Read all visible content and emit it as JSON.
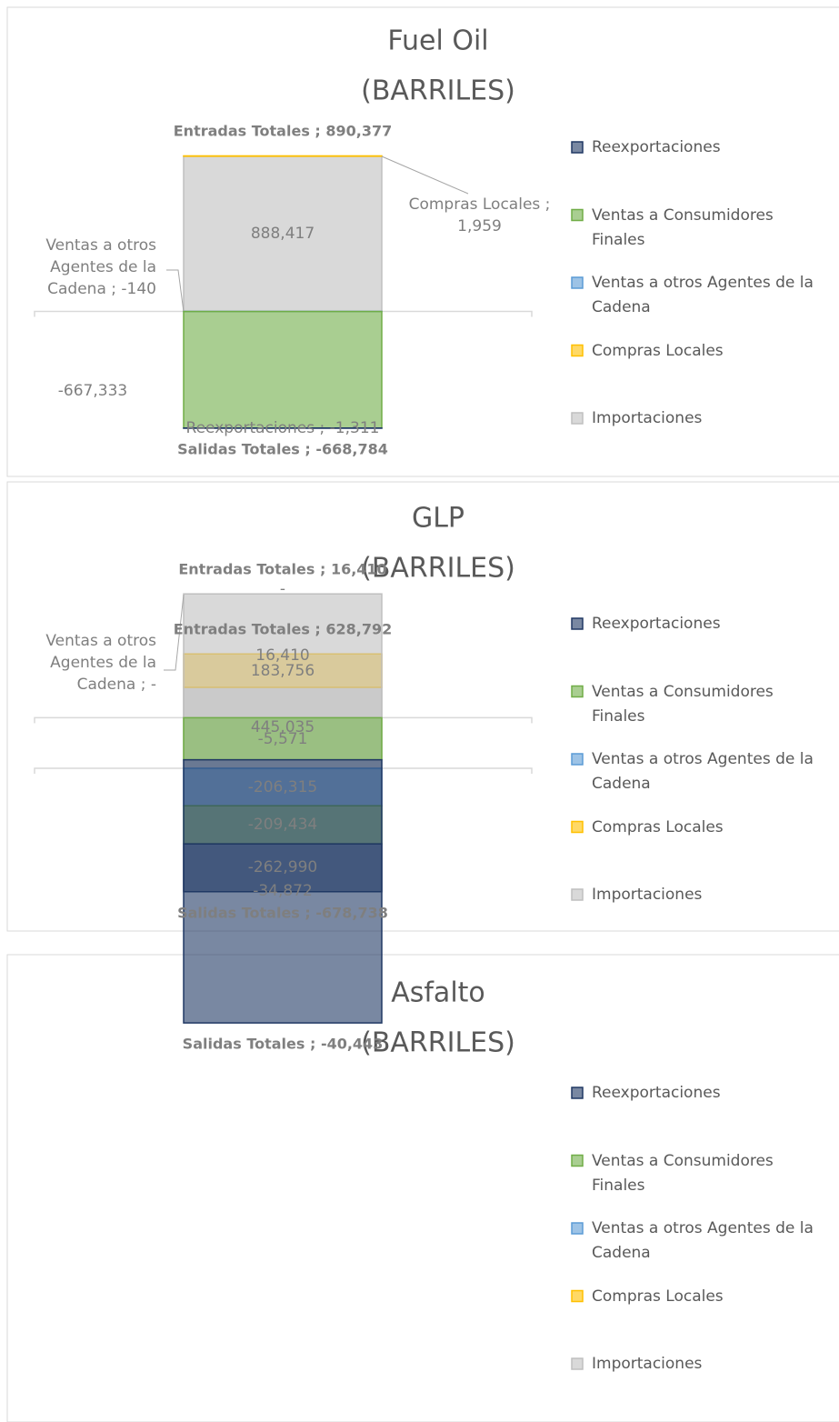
{
  "chart_data": [
    {
      "type": "bar",
      "stacked": true,
      "title": "Fuel Oil",
      "subtitle": "(BARRILES)",
      "categories": [
        null
      ],
      "ylim": [
        -700000,
        950000
      ],
      "legend": "right",
      "series": [
        {
          "name": "Importaciones",
          "color": "#bfbfbf",
          "values": [
            888417
          ],
          "value_labels": [
            "888,417"
          ]
        },
        {
          "name": "Compras Locales",
          "color": "#ffc000",
          "values": [
            1959
          ],
          "value_labels": [
            "Compras Locales ;  1,959"
          ]
        },
        {
          "name": "Ventas a otros Agentes de la Cadena",
          "color": "#5b9bd5",
          "values": [
            -140
          ],
          "value_labels": [
            "Ventas a otros Agentes de la Cadena ; -140"
          ]
        },
        {
          "name": "Ventas a Consumidores Finales",
          "color": "#70ad47",
          "values": [
            -667333
          ],
          "value_labels": [
            "-667,333"
          ]
        },
        {
          "name": "Reexportaciones",
          "color": "#203864",
          "values": [
            -1311
          ],
          "value_labels": [
            "Reexportaciones ; -1,311"
          ]
        }
      ],
      "annotations": [
        {
          "text": "Entradas Totales ;  890,377",
          "value": 890377
        },
        {
          "text": "Salidas Totales ; -668,784",
          "value": -668784
        }
      ]
    },
    {
      "type": "bar",
      "stacked": true,
      "title": "GLP",
      "subtitle": "(BARRILES)",
      "categories": [
        null
      ],
      "ylim": [
        -700000,
        700000
      ],
      "legend": "right",
      "series": [
        {
          "name": "Importaciones",
          "color": "#bfbfbf",
          "values": [
            445035
          ],
          "value_labels": [
            "445,035"
          ]
        },
        {
          "name": "Compras Locales",
          "color": "#ffc000",
          "values": [
            183756
          ],
          "value_labels": [
            "183,756"
          ]
        },
        {
          "name": "Ventas a otros Agentes de la Cadena",
          "color": "#5b9bd5",
          "values": [
            -206315
          ],
          "value_labels": [
            "-206,315"
          ]
        },
        {
          "name": "Ventas a Consumidores Finales",
          "color": "#70ad47",
          "values": [
            -209434
          ],
          "value_labels": [
            "-209,434"
          ]
        },
        {
          "name": "Reexportaciones",
          "color": "#203864",
          "values": [
            -262990
          ],
          "value_labels": [
            "-262,990"
          ]
        }
      ],
      "annotations": [
        {
          "text": "Entradas Totales ;  628,792",
          "value": 628792
        },
        {
          "text": "Salidas Totales ; -678,738",
          "value": -678738
        }
      ]
    },
    {
      "type": "bar",
      "stacked": true,
      "title": "Asfalto",
      "subtitle": "(BARRILES)",
      "categories": [
        null
      ],
      "ylim": [
        -42000,
        18000
      ],
      "legend": "right",
      "series": [
        {
          "name": "Importaciones",
          "color": "#bfbfbf",
          "values": [
            16410
          ],
          "value_labels": [
            "16,410"
          ]
        },
        {
          "name": "Compras Locales",
          "color": "#ffc000",
          "values": [
            0
          ],
          "value_labels": [
            "-"
          ]
        },
        {
          "name": "Ventas a otros Agentes de la Cadena",
          "color": "#5b9bd5",
          "values": [
            0
          ],
          "value_labels": [
            "Ventas a otros Agentes de la Cadena ;  -"
          ]
        },
        {
          "name": "Ventas a Consumidores Finales",
          "color": "#70ad47",
          "values": [
            -5571
          ],
          "value_labels": [
            "-5,571"
          ]
        },
        {
          "name": "Reexportaciones",
          "color": "#203864",
          "values": [
            -34872
          ],
          "value_labels": [
            "-34,872"
          ]
        }
      ],
      "annotations": [
        {
          "text": "Entradas Totales ;  16,410",
          "value": 16410
        },
        {
          "text": "Salidas Totales ; -40,443",
          "value": -40443
        }
      ]
    }
  ]
}
